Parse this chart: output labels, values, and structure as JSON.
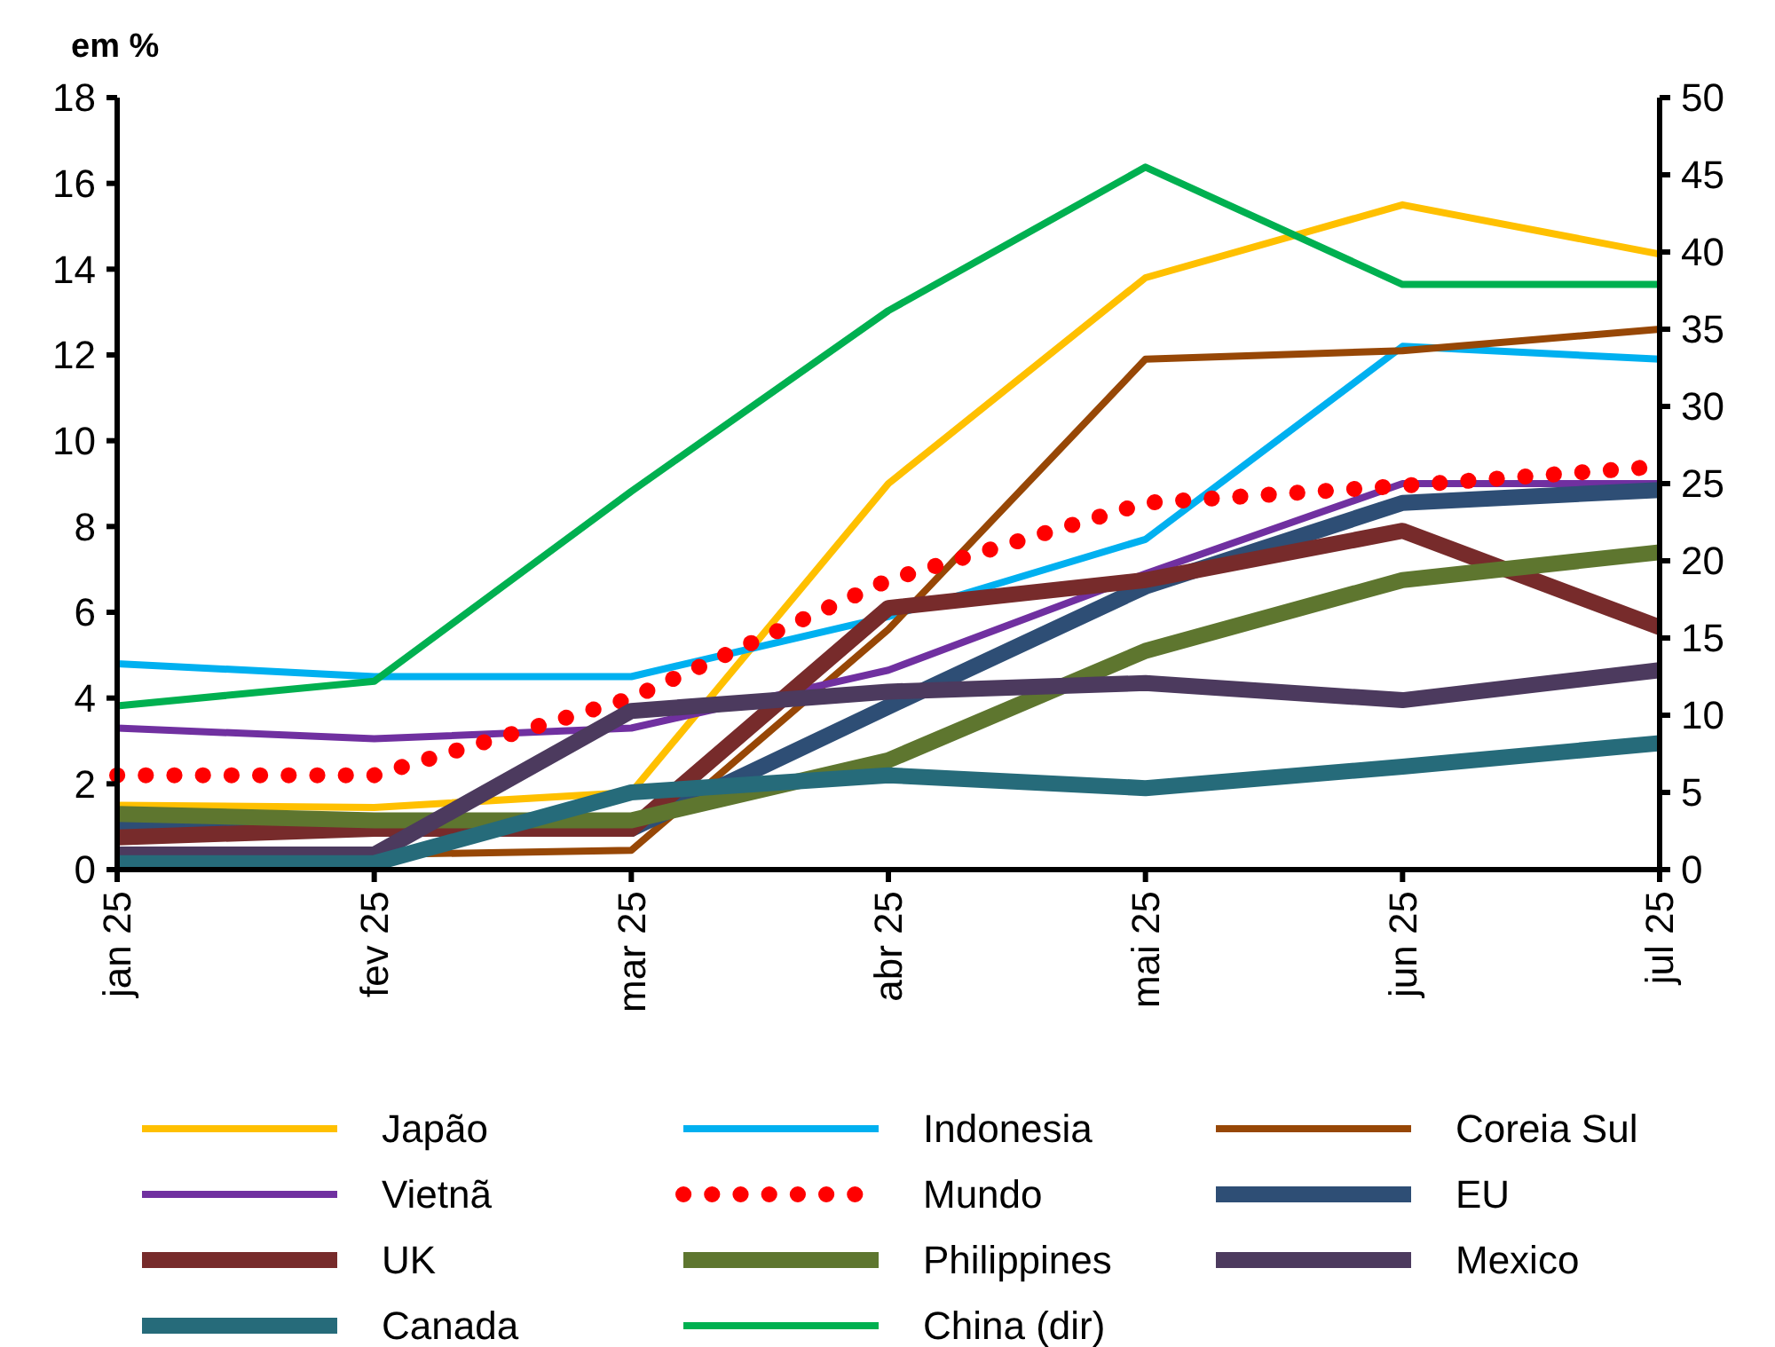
{
  "chart_data": {
    "type": "line",
    "ylabel": "em %",
    "categories": [
      "jan 25",
      "fev 25",
      "mar 25",
      "abr 25",
      "mai 25",
      "jun 25",
      "jul 25"
    ],
    "ylim": [
      0,
      18
    ],
    "yticks": [
      0,
      2,
      4,
      6,
      8,
      10,
      12,
      14,
      16,
      18
    ],
    "y2lim": [
      0,
      50
    ],
    "y2ticks": [
      0,
      5,
      10,
      15,
      20,
      25,
      30,
      35,
      40,
      45,
      50
    ],
    "grid": false,
    "legend": "bottom",
    "marker": "none",
    "series": [
      {
        "name": "Japão",
        "color": "#ffc000",
        "values": [
          1.5,
          1.45,
          1.8,
          9.0,
          13.8,
          15.5,
          14.35
        ]
      },
      {
        "name": "Indonesia",
        "color": "#00b0f0",
        "values": [
          4.8,
          4.5,
          4.5,
          5.9,
          7.7,
          12.2,
          11.9
        ]
      },
      {
        "name": "Coreia Sul",
        "color": "#974706",
        "values": [
          0.3,
          0.35,
          0.45,
          5.6,
          11.9,
          12.1,
          12.6
        ]
      },
      {
        "name": "Vietnã",
        "color": "#7030a0",
        "values": [
          3.3,
          3.05,
          3.3,
          4.65,
          6.9,
          9.0,
          9.0
        ]
      },
      {
        "name": "Mundo",
        "color": "#ff0000",
        "line_style": "dotted",
        "values": [
          2.2,
          2.2,
          4.0,
          6.75,
          8.55,
          8.95,
          9.4
        ]
      },
      {
        "name": "EU",
        "color": "#2e4e75",
        "values": [
          1.05,
          0.95,
          0.95,
          3.8,
          6.6,
          8.55,
          8.85
        ]
      },
      {
        "name": "UK",
        "color": "#772b2b",
        "values": [
          0.75,
          0.95,
          0.95,
          6.1,
          6.75,
          7.9,
          5.65
        ]
      },
      {
        "name": "Philippines",
        "color": "#5e762f",
        "values": [
          1.3,
          1.15,
          1.15,
          2.55,
          5.1,
          6.75,
          7.4
        ]
      },
      {
        "name": "Mexico",
        "color": "#4c3a5e",
        "values": [
          0.35,
          0.35,
          3.7,
          4.15,
          4.35,
          3.95,
          4.65
        ]
      },
      {
        "name": "Canada",
        "color": "#266b7a",
        "values": [
          0.15,
          0.15,
          1.8,
          2.2,
          1.9,
          2.4,
          2.95
        ]
      },
      {
        "name": "China (dir)",
        "color": "#00b050",
        "axis": "y2",
        "values": [
          10.6,
          12.2,
          24.5,
          36.2,
          45.5,
          37.9,
          37.9
        ]
      }
    ]
  }
}
